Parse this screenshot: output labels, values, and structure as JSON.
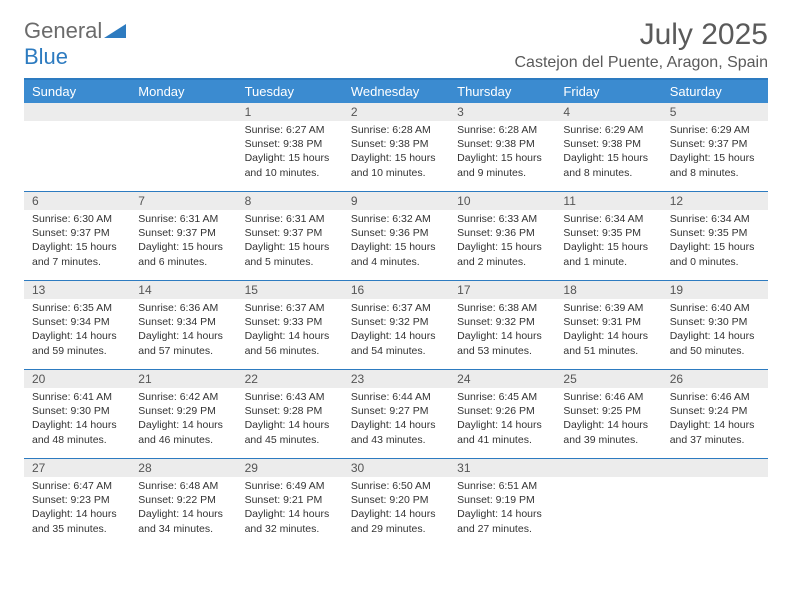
{
  "logo": {
    "word1": "General",
    "word2": "Blue"
  },
  "colors": {
    "accent": "#2d7bc0",
    "header_bg": "#3b8bd0",
    "daynum_bg": "#ececec",
    "text_gray": "#5a5a5a"
  },
  "title": "July 2025",
  "location": "Castejon del Puente, Aragon, Spain",
  "day_names": [
    "Sunday",
    "Monday",
    "Tuesday",
    "Wednesday",
    "Thursday",
    "Friday",
    "Saturday"
  ],
  "weeks": [
    [
      null,
      null,
      {
        "n": "1",
        "sunrise": "6:27 AM",
        "sunset": "9:38 PM",
        "daylight": "15 hours and 10 minutes."
      },
      {
        "n": "2",
        "sunrise": "6:28 AM",
        "sunset": "9:38 PM",
        "daylight": "15 hours and 10 minutes."
      },
      {
        "n": "3",
        "sunrise": "6:28 AM",
        "sunset": "9:38 PM",
        "daylight": "15 hours and 9 minutes."
      },
      {
        "n": "4",
        "sunrise": "6:29 AM",
        "sunset": "9:38 PM",
        "daylight": "15 hours and 8 minutes."
      },
      {
        "n": "5",
        "sunrise": "6:29 AM",
        "sunset": "9:37 PM",
        "daylight": "15 hours and 8 minutes."
      }
    ],
    [
      {
        "n": "6",
        "sunrise": "6:30 AM",
        "sunset": "9:37 PM",
        "daylight": "15 hours and 7 minutes."
      },
      {
        "n": "7",
        "sunrise": "6:31 AM",
        "sunset": "9:37 PM",
        "daylight": "15 hours and 6 minutes."
      },
      {
        "n": "8",
        "sunrise": "6:31 AM",
        "sunset": "9:37 PM",
        "daylight": "15 hours and 5 minutes."
      },
      {
        "n": "9",
        "sunrise": "6:32 AM",
        "sunset": "9:36 PM",
        "daylight": "15 hours and 4 minutes."
      },
      {
        "n": "10",
        "sunrise": "6:33 AM",
        "sunset": "9:36 PM",
        "daylight": "15 hours and 2 minutes."
      },
      {
        "n": "11",
        "sunrise": "6:34 AM",
        "sunset": "9:35 PM",
        "daylight": "15 hours and 1 minute."
      },
      {
        "n": "12",
        "sunrise": "6:34 AM",
        "sunset": "9:35 PM",
        "daylight": "15 hours and 0 minutes."
      }
    ],
    [
      {
        "n": "13",
        "sunrise": "6:35 AM",
        "sunset": "9:34 PM",
        "daylight": "14 hours and 59 minutes."
      },
      {
        "n": "14",
        "sunrise": "6:36 AM",
        "sunset": "9:34 PM",
        "daylight": "14 hours and 57 minutes."
      },
      {
        "n": "15",
        "sunrise": "6:37 AM",
        "sunset": "9:33 PM",
        "daylight": "14 hours and 56 minutes."
      },
      {
        "n": "16",
        "sunrise": "6:37 AM",
        "sunset": "9:32 PM",
        "daylight": "14 hours and 54 minutes."
      },
      {
        "n": "17",
        "sunrise": "6:38 AM",
        "sunset": "9:32 PM",
        "daylight": "14 hours and 53 minutes."
      },
      {
        "n": "18",
        "sunrise": "6:39 AM",
        "sunset": "9:31 PM",
        "daylight": "14 hours and 51 minutes."
      },
      {
        "n": "19",
        "sunrise": "6:40 AM",
        "sunset": "9:30 PM",
        "daylight": "14 hours and 50 minutes."
      }
    ],
    [
      {
        "n": "20",
        "sunrise": "6:41 AM",
        "sunset": "9:30 PM",
        "daylight": "14 hours and 48 minutes."
      },
      {
        "n": "21",
        "sunrise": "6:42 AM",
        "sunset": "9:29 PM",
        "daylight": "14 hours and 46 minutes."
      },
      {
        "n": "22",
        "sunrise": "6:43 AM",
        "sunset": "9:28 PM",
        "daylight": "14 hours and 45 minutes."
      },
      {
        "n": "23",
        "sunrise": "6:44 AM",
        "sunset": "9:27 PM",
        "daylight": "14 hours and 43 minutes."
      },
      {
        "n": "24",
        "sunrise": "6:45 AM",
        "sunset": "9:26 PM",
        "daylight": "14 hours and 41 minutes."
      },
      {
        "n": "25",
        "sunrise": "6:46 AM",
        "sunset": "9:25 PM",
        "daylight": "14 hours and 39 minutes."
      },
      {
        "n": "26",
        "sunrise": "6:46 AM",
        "sunset": "9:24 PM",
        "daylight": "14 hours and 37 minutes."
      }
    ],
    [
      {
        "n": "27",
        "sunrise": "6:47 AM",
        "sunset": "9:23 PM",
        "daylight": "14 hours and 35 minutes."
      },
      {
        "n": "28",
        "sunrise": "6:48 AM",
        "sunset": "9:22 PM",
        "daylight": "14 hours and 34 minutes."
      },
      {
        "n": "29",
        "sunrise": "6:49 AM",
        "sunset": "9:21 PM",
        "daylight": "14 hours and 32 minutes."
      },
      {
        "n": "30",
        "sunrise": "6:50 AM",
        "sunset": "9:20 PM",
        "daylight": "14 hours and 29 minutes."
      },
      {
        "n": "31",
        "sunrise": "6:51 AM",
        "sunset": "9:19 PM",
        "daylight": "14 hours and 27 minutes."
      },
      null,
      null
    ]
  ],
  "labels": {
    "sunrise": "Sunrise:",
    "sunset": "Sunset:",
    "daylight": "Daylight:"
  }
}
